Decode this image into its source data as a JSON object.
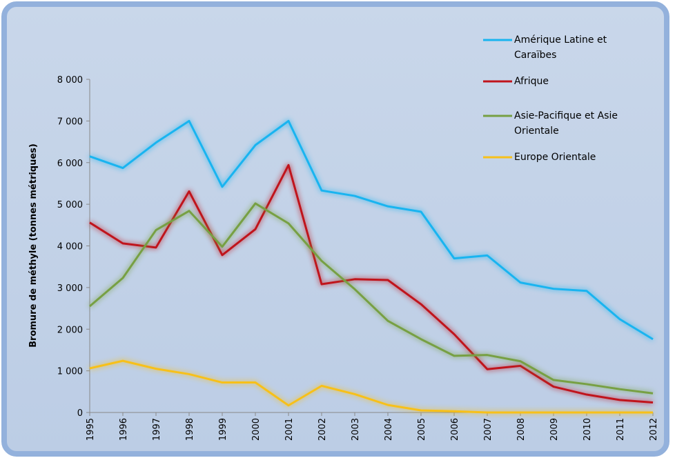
{
  "chart_data": {
    "type": "line",
    "y_label": "Bromure de méthyle (tonnes métriques)",
    "categories": [
      "1995",
      "1996",
      "1997",
      "1998",
      "1999",
      "2000",
      "2001",
      "2002",
      "2003",
      "2004",
      "2005",
      "2006",
      "2007",
      "2008",
      "2009",
      "2010",
      "2011",
      "2012"
    ],
    "series": [
      {
        "name": "Amérique Latine et Caraïbes",
        "color": "#19b4f0",
        "values": [
          6150,
          5870,
          6480,
          7000,
          5420,
          6420,
          7000,
          5330,
          5200,
          4950,
          4820,
          3700,
          3770,
          3120,
          2970,
          2920,
          2240,
          1760
        ]
      },
      {
        "name": "Afrique",
        "color": "#c0141c",
        "values": [
          4560,
          4060,
          3960,
          5310,
          3780,
          4400,
          5940,
          3080,
          3200,
          3180,
          2600,
          1880,
          1040,
          1120,
          620,
          430,
          300,
          240
        ]
      },
      {
        "name": "Asie-Pacifique et Asie Orientale",
        "color": "#77a043",
        "values": [
          2550,
          3230,
          4380,
          4840,
          3980,
          5020,
          4540,
          3640,
          2960,
          2200,
          1760,
          1360,
          1380,
          1230,
          780,
          680,
          560,
          460
        ]
      },
      {
        "name": "Europe Orientale",
        "color": "#f7c019",
        "values": [
          1060,
          1240,
          1050,
          920,
          720,
          720,
          170,
          640,
          440,
          180,
          50,
          30,
          0,
          0,
          0,
          0,
          0,
          0
        ]
      }
    ],
    "ylim": [
      0,
      8000
    ],
    "yticks": [
      0,
      {
        "value": 1000,
        "label": "1 000"
      },
      {
        "value": 2000,
        "label": "2 000"
      },
      {
        "value": 3000,
        "label": "3 000"
      },
      {
        "value": 4000,
        "label": "4 000"
      },
      {
        "value": 5000,
        "label": "5 000"
      },
      {
        "value": 6000,
        "label": "6 000"
      },
      {
        "value": 7000,
        "label": "7 000"
      },
      {
        "value": 8000,
        "label": "8 000"
      }
    ],
    "legend": "top-right"
  }
}
